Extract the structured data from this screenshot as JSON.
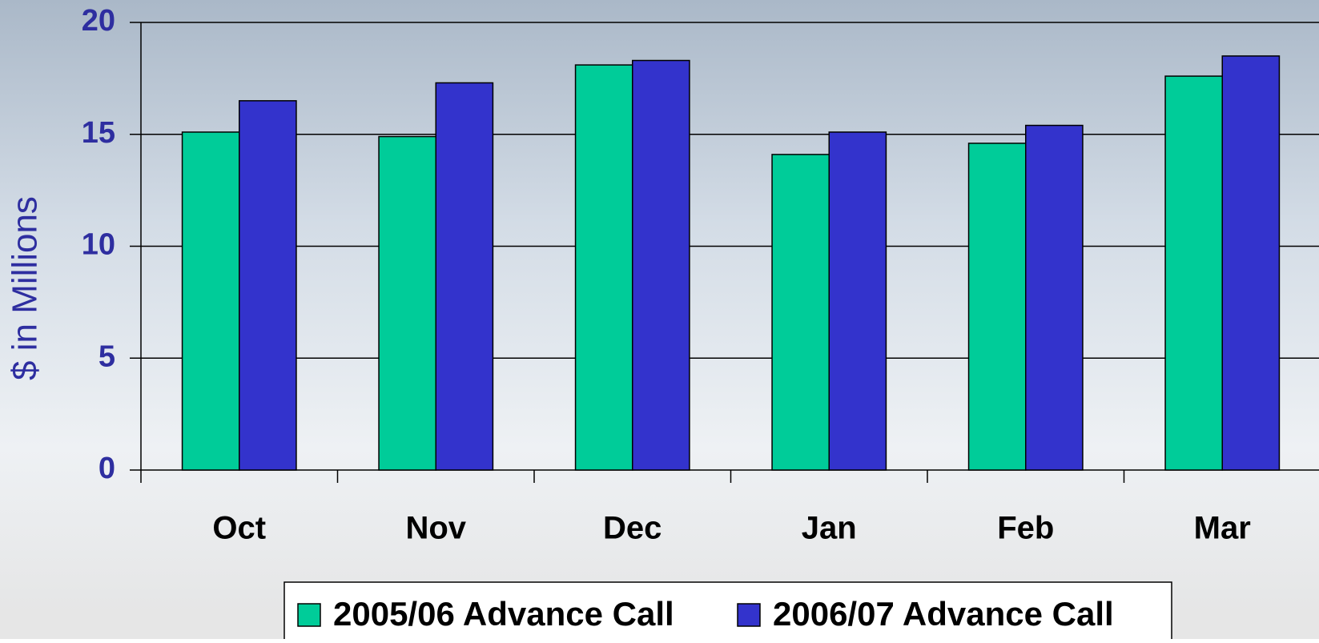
{
  "chart_data": {
    "type": "bar",
    "categories": [
      "Oct",
      "Nov",
      "Dec",
      "Jan",
      "Feb",
      "Mar"
    ],
    "series": [
      {
        "name": "2005/06 Advance Call",
        "color": "#00cc99",
        "values": [
          15.1,
          14.9,
          18.1,
          14.1,
          14.6,
          17.6
        ]
      },
      {
        "name": "2006/07 Advance Call",
        "color": "#3333cc",
        "values": [
          16.5,
          17.3,
          18.3,
          15.1,
          15.4,
          18.5
        ]
      }
    ],
    "ylabel": "$ in Millions",
    "ylim": [
      0,
      20
    ],
    "yticks": [
      0,
      5,
      10,
      15,
      20
    ],
    "grid": true,
    "legend": "bottom"
  }
}
